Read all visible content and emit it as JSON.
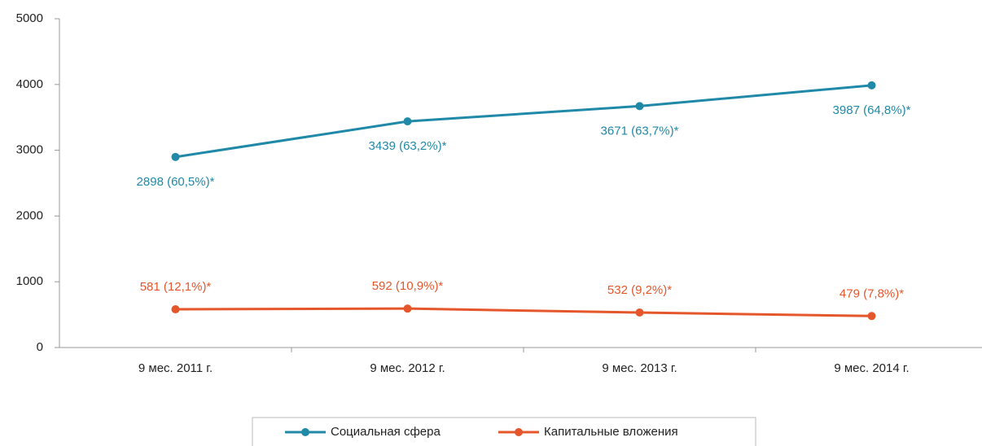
{
  "chart_data": {
    "type": "line",
    "categories": [
      "9 мес. 2011 г.",
      "9 мес. 2012  г.",
      "9 мес. 2013 г.",
      "9 мес. 2014 г."
    ],
    "series": [
      {
        "name": "Социальная сфера",
        "color": "#2089a8",
        "values": [
          2898,
          3439,
          3671,
          3987
        ],
        "value_labels": [
          "2898 (60,5%)*",
          "3439 (63,2%)*",
          "3671 (63,7%)*",
          "3987 (64,8%)*"
        ]
      },
      {
        "name": "Капитальные вложения",
        "color": "#e5572b",
        "values": [
          581,
          592,
          532,
          479
        ],
        "value_labels": [
          "581 (12,1%)*",
          "592 (10,9%)*",
          "532 (9,2%)*",
          "479 (7,8%)*"
        ]
      }
    ],
    "ylim": [
      0,
      5000
    ],
    "yticks": [
      0,
      1000,
      2000,
      3000,
      4000,
      5000
    ],
    "grid": false,
    "legend": "bottom"
  }
}
